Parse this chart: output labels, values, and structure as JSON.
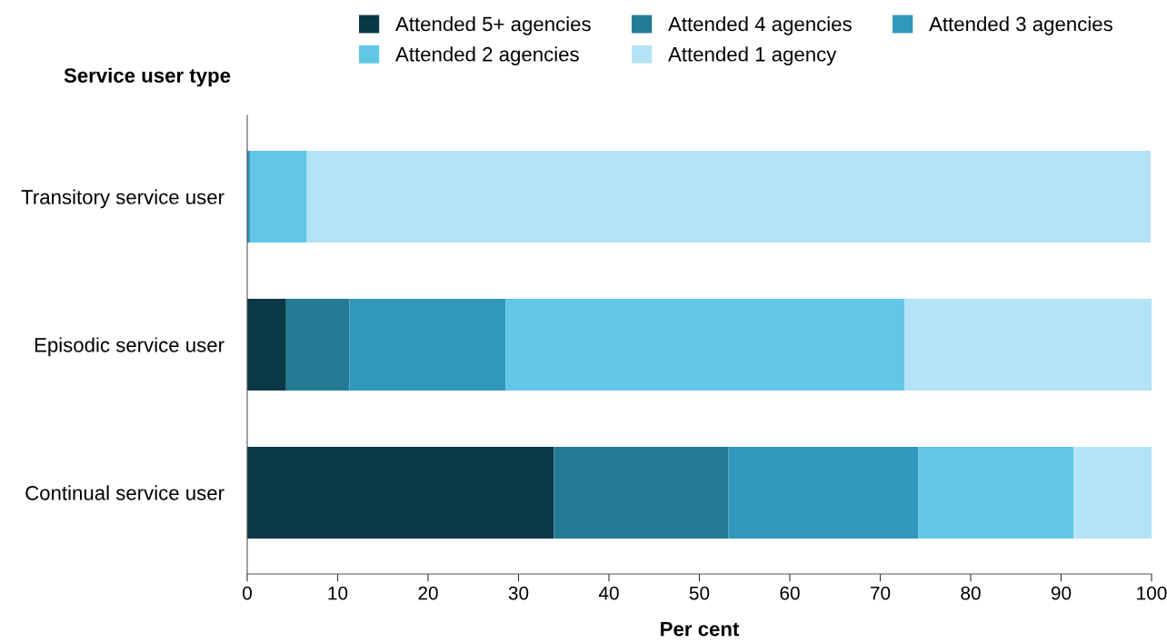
{
  "chart_data": {
    "type": "bar",
    "orientation": "horizontal",
    "stacked": true,
    "categories": [
      "Transitory service user",
      "Episodic service user",
      "Continual service user"
    ],
    "ylabel": "Service user type",
    "xlabel": "Per cent",
    "xlim": [
      0,
      100
    ],
    "xticks": [
      0,
      10,
      20,
      30,
      40,
      50,
      60,
      70,
      80,
      90,
      100
    ],
    "grid": false,
    "legend": "top",
    "series": [
      {
        "name": "Attended 5+ agencies",
        "color": "#0b3849",
        "values": [
          0,
          4.3,
          33.9
        ]
      },
      {
        "name": "Attended 4 agencies",
        "color": "#237b94",
        "values": [
          null,
          7.0,
          19.3
        ]
      },
      {
        "name": "Attended 3 agencies",
        "color": "#3098bb",
        "values": [
          0.3,
          17.3,
          21.0
        ]
      },
      {
        "name": "Attended 2 agencies",
        "color": "#62c7e7",
        "values": [
          6.3,
          44.1,
          17.2
        ]
      },
      {
        "name": "Attended 1 agency",
        "color": "#b4e3f6",
        "values": [
          93.3,
          27.3,
          8.6
        ]
      }
    ]
  }
}
